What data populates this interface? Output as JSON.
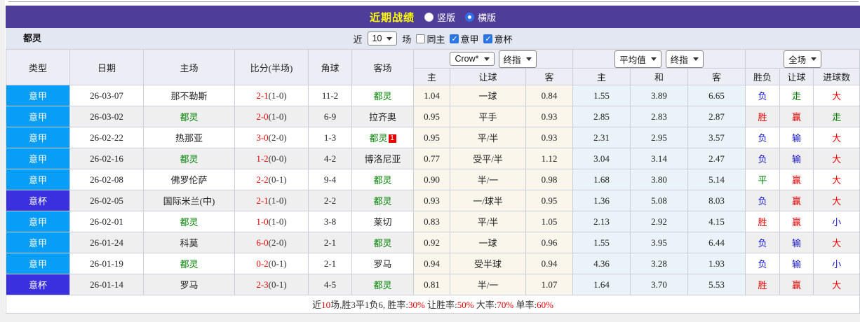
{
  "title_bar": {
    "title": "近期战绩",
    "radios": [
      {
        "label": "竖版",
        "checked": false
      },
      {
        "label": "横版",
        "checked": true
      }
    ]
  },
  "filter_bar": {
    "team": "都灵",
    "recent_label": "近",
    "recent_value": "10",
    "recent_suffix": "场",
    "checkboxes": [
      {
        "label": "同主",
        "checked": false
      },
      {
        "label": "意甲",
        "checked": true
      },
      {
        "label": "意杯",
        "checked": true
      }
    ]
  },
  "table": {
    "left_headers": [
      "类型",
      "日期",
      "主场",
      "比分(半场)",
      "角球",
      "客场"
    ],
    "groups": [
      {
        "selects": [
          "Crow*",
          "终指"
        ],
        "cols": [
          "主",
          "让球",
          "客"
        ]
      },
      {
        "selects": [
          "平均值",
          "终指"
        ],
        "cols": [
          "主",
          "和",
          "客"
        ]
      },
      {
        "selects": [
          "全场"
        ],
        "cols": [
          "胜负",
          "让球",
          "进球数"
        ]
      }
    ],
    "rows": [
      {
        "type": "意甲",
        "comp": "sa",
        "date": "26-03-07",
        "home": "那不勒斯",
        "home_torino": false,
        "score": "2-1",
        "half": "(1-0)",
        "corners": "11-2",
        "away": "都灵",
        "away_torino": true,
        "red_card": "",
        "h1": "1.04",
        "handicap": "一球",
        "h2": "0.84",
        "a1": "1.55",
        "a2": "3.89",
        "a3": "6.65",
        "r1": "负",
        "r1c": "blue",
        "r2": "走",
        "r2c": "green",
        "r3": "大",
        "r3c": "red"
      },
      {
        "type": "意甲",
        "comp": "sa",
        "date": "26-03-02",
        "home": "都灵",
        "home_torino": true,
        "score": "2-0",
        "half": "(1-0)",
        "corners": "6-9",
        "away": "拉齐奥",
        "away_torino": false,
        "red_card": "",
        "h1": "0.95",
        "handicap": "平手",
        "h2": "0.93",
        "a1": "2.85",
        "a2": "2.83",
        "a3": "2.87",
        "r1": "胜",
        "r1c": "red",
        "r2": "赢",
        "r2c": "red",
        "r3": "走",
        "r3c": "green"
      },
      {
        "type": "意甲",
        "comp": "sa",
        "date": "26-02-22",
        "home": "热那亚",
        "home_torino": false,
        "score": "3-0",
        "half": "(2-0)",
        "corners": "1-3",
        "away": "都灵",
        "away_torino": true,
        "red_card": "1",
        "h1": "0.95",
        "handicap": "平/半",
        "h2": "0.93",
        "a1": "2.31",
        "a2": "2.95",
        "a3": "3.57",
        "r1": "负",
        "r1c": "blue",
        "r2": "输",
        "r2c": "blue",
        "r3": "大",
        "r3c": "red"
      },
      {
        "type": "意甲",
        "comp": "sa",
        "date": "26-02-16",
        "home": "都灵",
        "home_torino": true,
        "score": "1-2",
        "half": "(0-0)",
        "corners": "4-2",
        "away": "博洛尼亚",
        "away_torino": false,
        "red_card": "",
        "h1": "0.77",
        "handicap": "受平/半",
        "h2": "1.12",
        "a1": "3.04",
        "a2": "3.14",
        "a3": "2.47",
        "r1": "负",
        "r1c": "blue",
        "r2": "输",
        "r2c": "blue",
        "r3": "大",
        "r3c": "red"
      },
      {
        "type": "意甲",
        "comp": "sa",
        "date": "26-02-08",
        "home": "佛罗伦萨",
        "home_torino": false,
        "score": "2-2",
        "half": "(0-1)",
        "corners": "9-4",
        "away": "都灵",
        "away_torino": true,
        "red_card": "",
        "h1": "0.90",
        "handicap": "半/一",
        "h2": "0.98",
        "a1": "1.68",
        "a2": "3.80",
        "a3": "5.14",
        "r1": "平",
        "r1c": "green",
        "r2": "赢",
        "r2c": "red",
        "r3": "大",
        "r3c": "red"
      },
      {
        "type": "意杯",
        "comp": "cup",
        "date": "26-02-05",
        "home": "国际米兰(中)",
        "home_torino": false,
        "score": "2-1",
        "half": "(1-0)",
        "corners": "2-2",
        "away": "都灵",
        "away_torino": true,
        "red_card": "",
        "h1": "0.93",
        "handicap": "一/球半",
        "h2": "0.95",
        "a1": "1.36",
        "a2": "5.08",
        "a3": "8.03",
        "r1": "负",
        "r1c": "blue",
        "r2": "赢",
        "r2c": "red",
        "r3": "大",
        "r3c": "red"
      },
      {
        "type": "意甲",
        "comp": "sa",
        "date": "26-02-01",
        "home": "都灵",
        "home_torino": true,
        "score": "1-0",
        "half": "(1-0)",
        "corners": "3-8",
        "away": "莱切",
        "away_torino": false,
        "red_card": "",
        "h1": "0.83",
        "handicap": "平/半",
        "h2": "1.05",
        "a1": "2.13",
        "a2": "2.92",
        "a3": "4.15",
        "r1": "胜",
        "r1c": "red",
        "r2": "赢",
        "r2c": "red",
        "r3": "小",
        "r3c": "blue"
      },
      {
        "type": "意甲",
        "comp": "sa",
        "date": "26-01-24",
        "home": "科莫",
        "home_torino": false,
        "score": "6-0",
        "half": "(2-0)",
        "corners": "2-1",
        "away": "都灵",
        "away_torino": true,
        "red_card": "",
        "h1": "0.92",
        "handicap": "一球",
        "h2": "0.96",
        "a1": "1.55",
        "a2": "3.95",
        "a3": "6.44",
        "r1": "负",
        "r1c": "blue",
        "r2": "输",
        "r2c": "blue",
        "r3": "大",
        "r3c": "red"
      },
      {
        "type": "意甲",
        "comp": "sa",
        "date": "26-01-19",
        "home": "都灵",
        "home_torino": true,
        "score": "0-2",
        "half": "(0-1)",
        "corners": "2-1",
        "away": "罗马",
        "away_torino": false,
        "red_card": "",
        "h1": "0.94",
        "handicap": "受半球",
        "h2": "0.94",
        "a1": "4.36",
        "a2": "3.28",
        "a3": "1.93",
        "r1": "负",
        "r1c": "blue",
        "r2": "输",
        "r2c": "blue",
        "r3": "小",
        "r3c": "blue"
      },
      {
        "type": "意杯",
        "comp": "cup",
        "date": "26-01-14",
        "home": "罗马",
        "home_torino": false,
        "score": "2-3",
        "half": "(0-1)",
        "corners": "4-5",
        "away": "都灵",
        "away_torino": true,
        "red_card": "",
        "h1": "0.81",
        "handicap": "半/一",
        "h2": "1.07",
        "a1": "1.64",
        "a2": "3.70",
        "a3": "5.53",
        "r1": "胜",
        "r1c": "red",
        "r2": "赢",
        "r2c": "red",
        "r3": "大",
        "r3c": "red"
      }
    ]
  },
  "footer": {
    "segments": [
      {
        "text": "近",
        "red": false
      },
      {
        "text": "10",
        "red": true
      },
      {
        "text": "场,胜3平1负6, 胜率:",
        "red": false
      },
      {
        "text": "30%",
        "red": true
      },
      {
        "text": " 让胜率:",
        "red": false
      },
      {
        "text": "50%",
        "red": true
      },
      {
        "text": " 大率:",
        "red": false
      },
      {
        "text": "70%",
        "red": true
      },
      {
        "text": " 单率:",
        "red": false
      },
      {
        "text": "60%",
        "red": true
      }
    ]
  },
  "colors": {
    "header_purple": "#4f3e99",
    "title_yellow": "#ffff00",
    "serie_a_badge": "#089ef7",
    "coppa_badge": "#3b30e0",
    "torino_green": "#008000",
    "score_red": "#e60000",
    "loss_blue": "#1414cc",
    "handicap_col_bg": "#fbf6ec",
    "avg_col_bg": "#e9f3f8"
  }
}
